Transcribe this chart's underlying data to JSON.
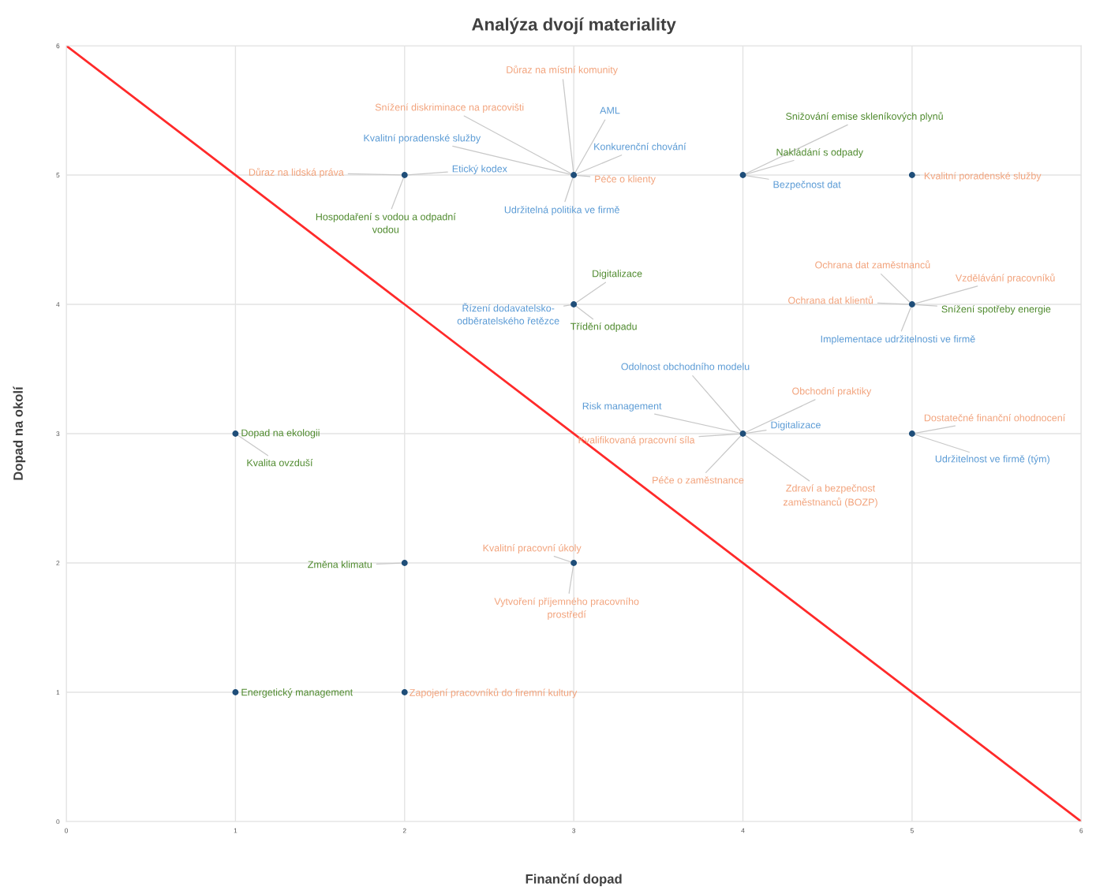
{
  "chart_data": {
    "type": "scatter",
    "title": "Analýza dvojí materiality",
    "xlabel": "Finanční dopad",
    "ylabel": "Dopad na okolí",
    "xlim": [
      0,
      6
    ],
    "ylim": [
      0,
      6
    ],
    "xticks": [
      0,
      1,
      2,
      3,
      4,
      5,
      6
    ],
    "yticks": [
      0,
      1,
      2,
      3,
      4,
      5,
      6
    ],
    "grid": true,
    "marker": "circle",
    "series": [
      {
        "type": "line",
        "color": "#ff2a2a",
        "x": [
          0,
          6
        ],
        "values": [
          6,
          0
        ],
        "marker": "none",
        "line_style": "solid"
      },
      {
        "type": "scatter",
        "color": "#1f4e79",
        "x": [
          1,
          1,
          2,
          2,
          2,
          3,
          3,
          3,
          4,
          4,
          5,
          5,
          5
        ],
        "values": [
          3,
          1,
          5,
          2,
          1,
          5,
          4,
          2,
          5,
          3,
          5,
          4,
          3
        ]
      }
    ],
    "annotations": [
      {
        "text": "Důraz na lidská práva",
        "x": 2,
        "y": 5
      },
      {
        "text": "Etický kodex",
        "x": 2,
        "y": 5
      },
      {
        "text": "Hospodaření s vodou a odpadní\nvodou",
        "x": 2,
        "y": 5
      },
      {
        "text": "Důraz na místní komunity",
        "x": 3,
        "y": 5
      },
      {
        "text": "Snížení diskriminace na pracovišti",
        "x": 3,
        "y": 5
      },
      {
        "text": "AML",
        "x": 3,
        "y": 5
      },
      {
        "text": "Kvalitní poradenské služby",
        "x": 3,
        "y": 5
      },
      {
        "text": "Konkurenční chování",
        "x": 3,
        "y": 5
      },
      {
        "text": "Péče o klienty",
        "x": 3,
        "y": 5
      },
      {
        "text": "Udržitelná politika ve firmě",
        "x": 3,
        "y": 5
      },
      {
        "text": "Snižování emise skleníkových plynů",
        "x": 4,
        "y": 5
      },
      {
        "text": "Nakládání s odpady",
        "x": 4,
        "y": 5
      },
      {
        "text": "Bezpečnost dat",
        "x": 4,
        "y": 5
      },
      {
        "text": "Kvalitní poradenské služby",
        "x": 5,
        "y": 5
      },
      {
        "text": "Digitalizace",
        "x": 3,
        "y": 4
      },
      {
        "text": "Řízení dodavatelsko-\nodběratelského řetězce",
        "x": 3,
        "y": 4
      },
      {
        "text": "Třídění odpadu",
        "x": 3,
        "y": 4
      },
      {
        "text": "Ochrana dat zaměstnanců",
        "x": 5,
        "y": 4
      },
      {
        "text": "Vzdělávání pracovníků",
        "x": 5,
        "y": 4
      },
      {
        "text": "Ochrana dat klientů",
        "x": 5,
        "y": 4
      },
      {
        "text": "Snížení spotřeby energie",
        "x": 5,
        "y": 4
      },
      {
        "text": "Implementace udržitelnosti ve firmě",
        "x": 5,
        "y": 4
      },
      {
        "text": "Dopad na ekologii",
        "x": 1,
        "y": 3
      },
      {
        "text": "Kvalita ovzduší",
        "x": 1,
        "y": 3
      },
      {
        "text": "Odolnost obchodního modelu",
        "x": 4,
        "y": 3
      },
      {
        "text": "Risk management",
        "x": 4,
        "y": 3
      },
      {
        "text": "Obchodní praktiky",
        "x": 4,
        "y": 3
      },
      {
        "text": "Digitalizace",
        "x": 4,
        "y": 3
      },
      {
        "text": "Kvalifikovaná pracovní síla",
        "x": 4,
        "y": 3
      },
      {
        "text": "Péče o zaměstnance",
        "x": 4,
        "y": 3
      },
      {
        "text": "Zdraví a bezpečnost\nzaměstnanců (BOZP)",
        "x": 4,
        "y": 3
      },
      {
        "text": "Dostatečné finanční ohodnocení",
        "x": 5,
        "y": 3
      },
      {
        "text": "Udržitelnost ve firmě (tým)",
        "x": 5,
        "y": 3
      },
      {
        "text": "Změna klimatu",
        "x": 2,
        "y": 2
      },
      {
        "text": "Kvalitní pracovní úkoly",
        "x": 3,
        "y": 2
      },
      {
        "text": "Vytvoření příjemného pracovního\nprostředí",
        "x": 3,
        "y": 2
      },
      {
        "text": "Energetický management",
        "x": 1,
        "y": 1
      },
      {
        "text": "Zapojení pracovníků do firemní kultury",
        "x": 2,
        "y": 1
      }
    ]
  }
}
